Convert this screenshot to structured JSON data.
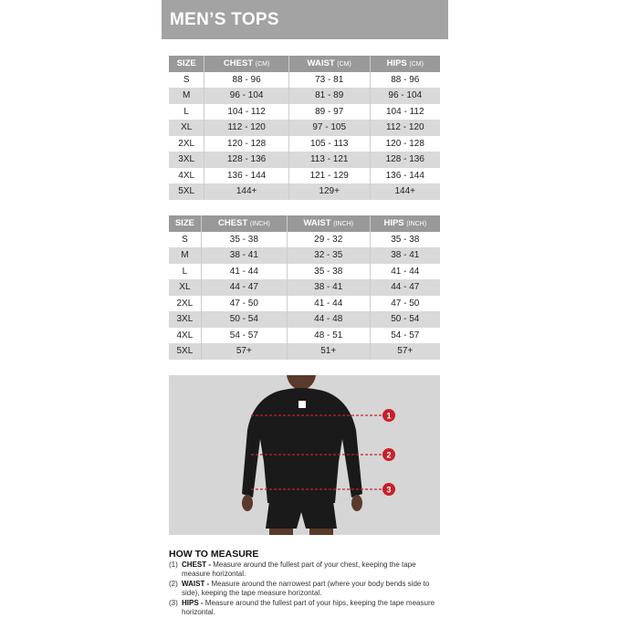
{
  "title": "MEN’S TOPS",
  "cm_table": {
    "headers": [
      {
        "label": "SIZE",
        "unit": ""
      },
      {
        "label": "CHEST",
        "unit": "(CM)"
      },
      {
        "label": "WAIST",
        "unit": "(CM)"
      },
      {
        "label": "HIPS",
        "unit": "(CM)"
      }
    ],
    "rows": [
      [
        "S",
        "88 - 96",
        "73 - 81",
        "88 - 96"
      ],
      [
        "M",
        "96 - 104",
        "81 - 89",
        "96 - 104"
      ],
      [
        "L",
        "104 - 112",
        "89 - 97",
        "104 - 112"
      ],
      [
        "XL",
        "112 - 120",
        "97 - 105",
        "112 - 120"
      ],
      [
        "2XL",
        "120 - 128",
        "105 - 113",
        "120 - 128"
      ],
      [
        "3XL",
        "128 - 136",
        "113 - 121",
        "128 - 136"
      ],
      [
        "4XL",
        "136 - 144",
        "121 - 129",
        "136 - 144"
      ],
      [
        "5XL",
        "144+",
        "129+",
        "144+"
      ]
    ]
  },
  "inch_table": {
    "headers": [
      {
        "label": "SIZE",
        "unit": ""
      },
      {
        "label": "CHEST",
        "unit": "(INCH)"
      },
      {
        "label": "WAIST",
        "unit": "(INCH)"
      },
      {
        "label": "HIPS",
        "unit": "(INCH)"
      }
    ],
    "rows": [
      [
        "S",
        "35 - 38",
        "29 - 32",
        "35 - 38"
      ],
      [
        "M",
        "38 - 41",
        "32 - 35",
        "38 - 41"
      ],
      [
        "L",
        "41 - 44",
        "35 - 38",
        "41 - 44"
      ],
      [
        "XL",
        "44 - 47",
        "38 - 41",
        "44 - 47"
      ],
      [
        "2XL",
        "47 - 50",
        "41 - 44",
        "47 - 50"
      ],
      [
        "3XL",
        "50 - 54",
        "44 - 48",
        "50 - 54"
      ],
      [
        "4XL",
        "54 - 57",
        "48 - 51",
        "54 - 57"
      ],
      [
        "5XL",
        "57+",
        "51+",
        "57+"
      ]
    ]
  },
  "figure": {
    "markers": [
      "1",
      "2",
      "3"
    ],
    "marker_color": "#c8202a"
  },
  "how_to": {
    "heading": "HOW TO MEASURE",
    "items": [
      {
        "num": "(1)",
        "name": "CHEST -",
        "text": "Measure around the fullest part of your chest, keeping the tape measure horizontal."
      },
      {
        "num": "(2)",
        "name": "WAIST -",
        "text": "Measure around the narrowest part (where your body bends side to side), keeping the tape measure horizontal."
      },
      {
        "num": "(3)",
        "name": "HIPS -",
        "text": "Measure around the fullest part of your hips, keeping the tape measure horizontal."
      }
    ]
  }
}
